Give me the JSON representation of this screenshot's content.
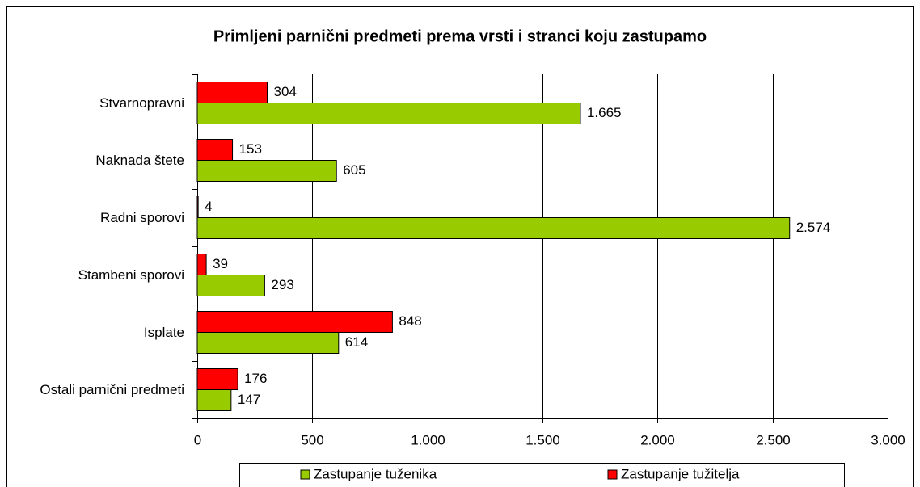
{
  "chart_data": {
    "type": "bar",
    "orientation": "horizontal",
    "title": "Primljeni parnični predmeti prema vrsti i stranci koju zastupamo",
    "categories": [
      "Stvarnopravni",
      "Naknada štete",
      "Radni sporovi",
      "Stambeni sporovi",
      "Isplate",
      "Ostali parnični predmeti"
    ],
    "series": [
      {
        "name": "Zastupanje tužitelja",
        "color": "#ff0000",
        "values": [
          304,
          153,
          4,
          39,
          848,
          176
        ]
      },
      {
        "name": "Zastupanje tuženika",
        "color": "#99cc00",
        "values": [
          1665,
          605,
          2574,
          293,
          614,
          147
        ],
        "value_labels": [
          "1.665",
          "605",
          "2.574",
          "293",
          "614",
          "147"
        ]
      }
    ],
    "legend_order": [
      "Zastupanje tuženika",
      "Zastupanje tužitelja"
    ],
    "xlim": [
      0,
      3000
    ],
    "xticks": [
      0,
      500,
      {
        "value": 1000,
        "label": "1.000"
      },
      {
        "value": 1500,
        "label": "1.500"
      },
      {
        "value": 2000,
        "label": "2.000"
      },
      {
        "value": 2500,
        "label": "2.500"
      },
      {
        "value": 3000,
        "label": "3.000"
      }
    ],
    "grid": true,
    "legend": "bottom"
  }
}
